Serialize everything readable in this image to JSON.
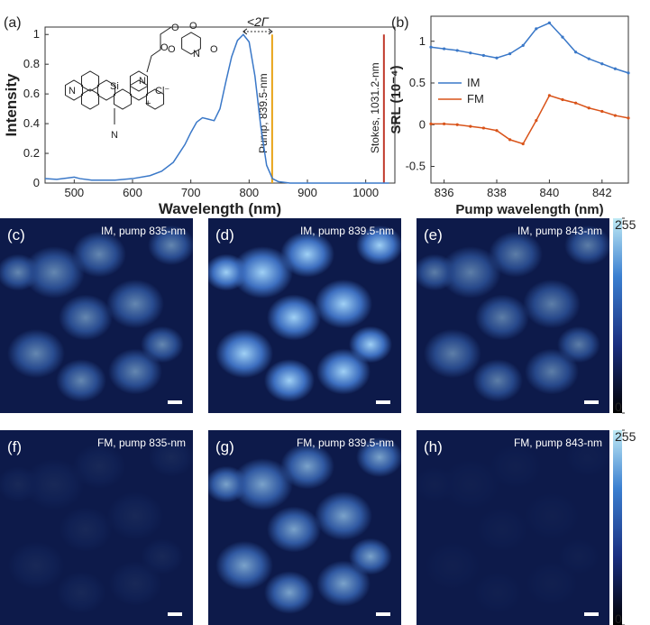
{
  "chart_data": [
    {
      "type": "line",
      "panel_label": "(a)",
      "xlabel": "Wavelength (nm)",
      "ylabel": "Intensity",
      "x": [
        450,
        470,
        490,
        500,
        510,
        530,
        550,
        570,
        600,
        630,
        650,
        670,
        690,
        700,
        710,
        720,
        730,
        740,
        750,
        760,
        770,
        780,
        790,
        800,
        810,
        820,
        830,
        840,
        850,
        870,
        900,
        950,
        1000,
        1040
      ],
      "series": [
        {
          "color": "#3a78c8",
          "values": [
            0.03,
            0.025,
            0.035,
            0.04,
            0.03,
            0.02,
            0.02,
            0.02,
            0.03,
            0.05,
            0.08,
            0.14,
            0.26,
            0.34,
            0.41,
            0.44,
            0.43,
            0.42,
            0.5,
            0.68,
            0.85,
            0.96,
            1.0,
            0.95,
            0.72,
            0.38,
            0.12,
            0.03,
            0.01,
            0,
            0,
            0,
            0,
            0
          ]
        }
      ],
      "xlim": [
        450,
        1050
      ],
      "xticks": [
        500,
        600,
        700,
        800,
        900,
        1000
      ],
      "ylim": [
        0,
        1.05
      ],
      "yticks": [
        0,
        0.2,
        0.4,
        0.6,
        0.8,
        1
      ],
      "vlines": [
        {
          "x": 839.5,
          "label": "Pump, 839.5-nm",
          "color": "#e8a317"
        },
        {
          "x": 1031.2,
          "label": "Stokes, 1031.2-nm",
          "color": "#c0392b"
        }
      ],
      "annotation": "<2Γ",
      "structure_labels": [
        "N",
        "Si",
        "N",
        "Cl⁻",
        "+",
        "N",
        "O",
        "O",
        "O",
        "N",
        "O",
        "O"
      ]
    },
    {
      "type": "line",
      "panel_label": "(b)",
      "xlabel": "Pump wavelength (nm)",
      "ylabel": "SRL (10⁻⁴)",
      "x": [
        835.5,
        836,
        836.5,
        837,
        837.5,
        838,
        838.5,
        839,
        839.5,
        840,
        840.5,
        841,
        841.5,
        842,
        842.5,
        843
      ],
      "series": [
        {
          "name": "IM",
          "color": "#3a78c8",
          "values": [
            0.93,
            0.91,
            0.89,
            0.86,
            0.83,
            0.8,
            0.85,
            0.95,
            1.15,
            1.22,
            1.05,
            0.87,
            0.79,
            0.73,
            0.67,
            0.62
          ]
        },
        {
          "name": "FM",
          "color": "#d95319",
          "values": [
            0.01,
            0.01,
            0,
            -0.02,
            -0.04,
            -0.07,
            -0.18,
            -0.23,
            0.05,
            0.35,
            0.3,
            0.26,
            0.2,
            0.16,
            0.11,
            0.08
          ]
        }
      ],
      "xlim": [
        835.5,
        843
      ],
      "xticks": [
        836,
        838,
        840,
        842
      ],
      "ylim": [
        -0.7,
        1.3
      ],
      "yticks": [
        -0.5,
        0,
        0.5,
        1
      ],
      "legend": "left"
    }
  ],
  "panels": [
    {
      "label": "(c)",
      "caption": "IM, pump 835-nm"
    },
    {
      "label": "(d)",
      "caption": "IM, pump 839.5-nm"
    },
    {
      "label": "(e)",
      "caption": "IM, pump 843-nm"
    },
    {
      "label": "(f)",
      "caption": "FM, pump 835-nm"
    },
    {
      "label": "(g)",
      "caption": "FM, pump 839.5-nm"
    },
    {
      "label": "(h)",
      "caption": "FM, pump 843-nm"
    }
  ],
  "colorbar": {
    "lim": [
      0,
      255
    ],
    "ticks": [
      0,
      255
    ]
  }
}
